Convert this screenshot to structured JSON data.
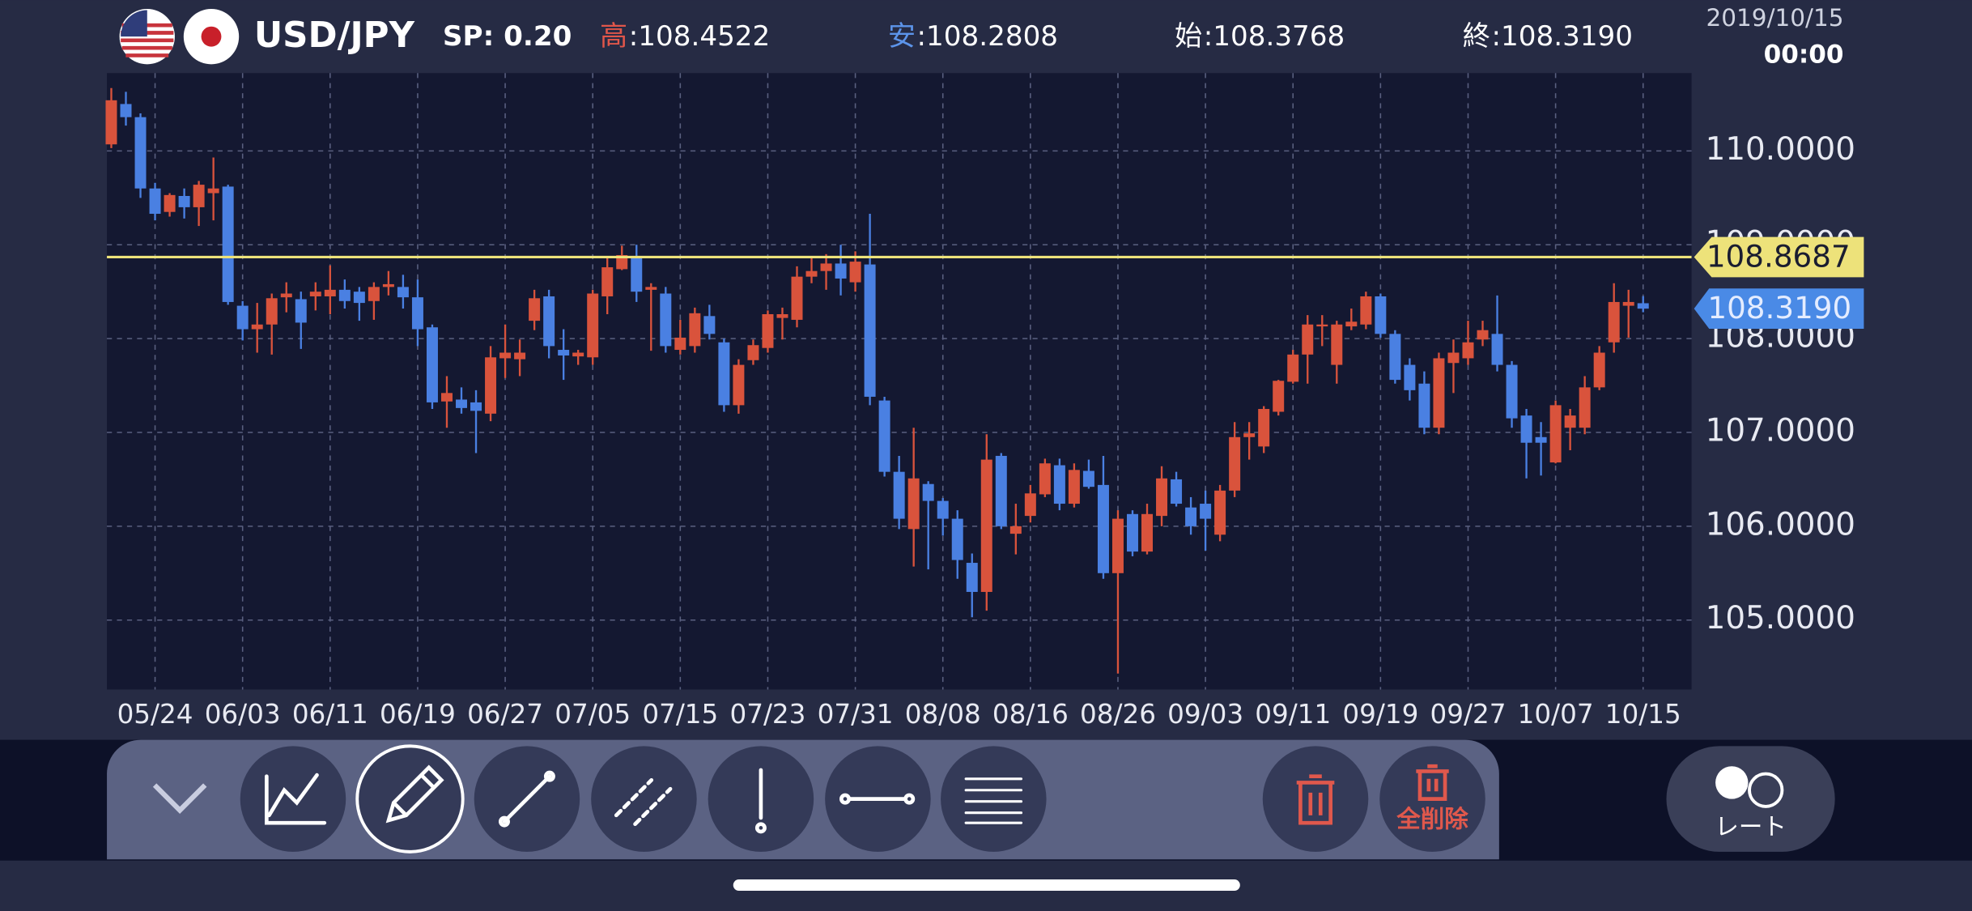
{
  "header": {
    "pair": "USD/JPY",
    "spread_label": "SP",
    "spread": ": 0.20",
    "high_label": "高",
    "high": ":108.4522",
    "low_label": "安",
    "low": ":108.2808",
    "open_label": "始",
    "open": ":108.3768",
    "close_label": "終",
    "close": ":108.3190",
    "date": "2019/10/15",
    "time": "00:00"
  },
  "toolbar": {
    "delete_all": "全削除",
    "rate": "レート"
  },
  "chart_data": {
    "type": "candlestick",
    "categories": [
      null,
      null,
      null,
      "05/24",
      null,
      null,
      null,
      null,
      null,
      "06/03",
      null,
      null,
      null,
      null,
      null,
      "06/11",
      null,
      null,
      null,
      null,
      null,
      "06/19",
      null,
      null,
      null,
      null,
      null,
      "06/27",
      null,
      null,
      null,
      null,
      null,
      "07/05",
      null,
      null,
      null,
      null,
      null,
      "07/15",
      null,
      null,
      null,
      null,
      null,
      "07/23",
      null,
      null,
      null,
      null,
      null,
      "07/31",
      null,
      null,
      null,
      null,
      null,
      "08/08",
      null,
      null,
      null,
      null,
      null,
      "08/16",
      null,
      null,
      null,
      null,
      null,
      "08/26",
      null,
      null,
      null,
      null,
      null,
      "09/03",
      null,
      null,
      null,
      null,
      null,
      "09/11",
      null,
      null,
      null,
      null,
      null,
      "09/19",
      null,
      null,
      null,
      null,
      null,
      "09/27",
      null,
      null,
      null,
      null,
      null,
      "10/07",
      null,
      null,
      null,
      null,
      null,
      "10/15"
    ],
    "open": [
      110.07,
      110.5,
      110.36,
      109.6,
      109.35,
      109.52,
      109.4,
      109.55,
      109.62,
      108.35,
      108.1,
      108.15,
      108.44,
      108.42,
      108.45,
      108.45,
      108.52,
      108.5,
      108.4,
      108.55,
      108.55,
      108.44,
      108.12,
      107.33,
      107.35,
      107.32,
      107.2,
      107.79,
      107.78,
      108.19,
      108.45,
      107.88,
      107.81,
      107.8,
      108.45,
      108.74,
      108.86,
      108.52,
      108.48,
      107.88,
      107.92,
      108.24,
      107.96,
      107.29,
      107.77,
      107.9,
      108.22,
      108.2,
      108.66,
      108.72,
      108.8,
      108.6,
      108.79,
      107.34,
      106.58,
      105.97,
      106.45,
      106.27,
      106.08,
      105.61,
      105.3,
      106.75,
      105.92,
      106.11,
      106.34,
      106.65,
      106.24,
      106.59,
      106.44,
      105.5,
      106.13,
      105.73,
      106.11,
      106.5,
      106.2,
      106.24,
      105.91,
      106.38,
      106.95,
      106.85,
      107.22,
      107.54,
      107.83,
      108.13,
      107.72,
      108.13,
      108.15,
      108.45,
      108.05,
      107.72,
      107.52,
      107.05,
      107.74,
      107.79,
      107.99,
      108.05,
      107.72,
      107.18,
      106.95,
      106.68,
      107.05,
      107.05,
      107.48,
      107.96,
      108.35,
      108.3768
    ],
    "high": [
      110.67,
      110.63,
      110.4,
      109.66,
      109.55,
      109.6,
      109.68,
      109.93,
      109.64,
      108.4,
      108.38,
      108.48,
      108.6,
      108.5,
      108.6,
      108.78,
      108.63,
      108.55,
      108.6,
      108.72,
      108.68,
      108.63,
      108.15,
      107.6,
      107.48,
      107.45,
      107.92,
      108.15,
      107.99,
      108.52,
      108.52,
      108.1,
      107.88,
      108.52,
      108.86,
      108.99,
      109.0,
      108.59,
      108.55,
      108.2,
      108.33,
      108.36,
      108.0,
      107.78,
      107.99,
      108.3,
      108.33,
      108.77,
      108.86,
      108.9,
      109.0,
      108.93,
      109.33,
      107.38,
      106.75,
      107.05,
      106.48,
      106.3,
      106.17,
      105.71,
      106.98,
      106.78,
      106.24,
      106.44,
      106.72,
      106.72,
      106.67,
      106.71,
      106.75,
      106.17,
      106.17,
      106.24,
      106.64,
      106.58,
      106.31,
      106.38,
      106.44,
      107.11,
      107.11,
      107.28,
      107.56,
      107.88,
      108.25,
      108.25,
      108.19,
      108.32,
      108.5,
      108.48,
      108.09,
      107.79,
      107.65,
      107.85,
      107.99,
      108.19,
      108.19,
      108.46,
      107.76,
      107.25,
      107.11,
      107.34,
      107.25,
      107.6,
      107.92,
      108.59,
      108.52,
      108.4522
    ],
    "low": [
      110.03,
      110.27,
      109.5,
      109.26,
      109.3,
      109.28,
      109.2,
      109.26,
      108.36,
      107.98,
      107.85,
      107.83,
      108.28,
      107.89,
      108.3,
      108.26,
      108.32,
      108.19,
      108.2,
      108.46,
      108.32,
      107.92,
      107.25,
      107.05,
      107.2,
      106.78,
      107.12,
      107.58,
      107.6,
      108.09,
      107.79,
      107.56,
      107.72,
      107.72,
      108.26,
      108.73,
      108.39,
      107.87,
      107.85,
      107.83,
      107.85,
      107.99,
      107.22,
      107.2,
      107.72,
      107.85,
      107.99,
      108.12,
      108.59,
      108.52,
      108.46,
      108.5,
      107.29,
      106.53,
      105.97,
      105.57,
      105.54,
      105.9,
      105.44,
      105.03,
      105.1,
      105.97,
      105.7,
      106.04,
      106.31,
      106.17,
      106.2,
      106.4,
      105.44,
      104.43,
      105.68,
      105.7,
      106.0,
      106.21,
      105.91,
      105.74,
      105.84,
      106.31,
      106.71,
      106.78,
      107.18,
      107.52,
      107.52,
      107.92,
      107.52,
      108.09,
      108.1,
      108.01,
      107.52,
      107.34,
      106.98,
      106.98,
      107.42,
      107.72,
      107.92,
      107.65,
      107.05,
      106.51,
      106.54,
      106.67,
      106.81,
      106.98,
      107.45,
      107.85,
      108.01,
      108.2808
    ],
    "close": [
      110.54,
      110.36,
      109.6,
      109.33,
      109.53,
      109.4,
      109.64,
      109.6,
      108.39,
      108.1,
      108.15,
      108.43,
      108.48,
      108.17,
      108.5,
      108.52,
      108.4,
      108.38,
      108.55,
      108.58,
      108.44,
      108.1,
      107.32,
      107.42,
      107.26,
      107.23,
      107.8,
      107.85,
      107.85,
      108.43,
      107.92,
      107.82,
      107.85,
      108.48,
      108.76,
      108.89,
      108.5,
      108.55,
      107.92,
      108.01,
      108.27,
      108.05,
      107.29,
      107.72,
      107.93,
      108.26,
      108.26,
      108.66,
      108.72,
      108.8,
      108.64,
      108.82,
      107.38,
      106.58,
      106.08,
      106.51,
      106.27,
      106.08,
      105.64,
      105.3,
      106.71,
      106.0,
      106.0,
      106.35,
      106.67,
      106.24,
      106.6,
      106.42,
      105.5,
      106.08,
      105.73,
      106.13,
      106.51,
      106.24,
      106.0,
      106.08,
      106.38,
      106.95,
      106.99,
      107.25,
      107.55,
      107.83,
      108.15,
      108.15,
      108.15,
      108.18,
      108.45,
      108.05,
      107.56,
      107.45,
      107.05,
      107.79,
      107.85,
      107.96,
      108.09,
      107.72,
      107.15,
      106.89,
      106.89,
      107.29,
      107.18,
      107.48,
      107.85,
      108.39,
      108.39,
      108.319
    ],
    "up_color": "#d9533c",
    "down_color": "#4a80e2",
    "ylim": [
      104.26,
      110.83
    ],
    "yticks": [
      {
        "value": 105,
        "label": "105.0000"
      },
      {
        "value": 106,
        "label": "106.0000"
      },
      {
        "value": 107,
        "label": "107.0000"
      },
      {
        "value": 108,
        "label": "108.0000"
      },
      {
        "value": 109,
        "label": "109.0000"
      },
      {
        "value": 110,
        "label": "110.0000"
      }
    ],
    "grid": true,
    "horizontal_line": {
      "value": 108.8687,
      "label": "108.8687",
      "color": "#ede27a"
    },
    "last_price": {
      "value": 108.319,
      "label": "108.3190",
      "color": "#4a8ae6"
    }
  }
}
